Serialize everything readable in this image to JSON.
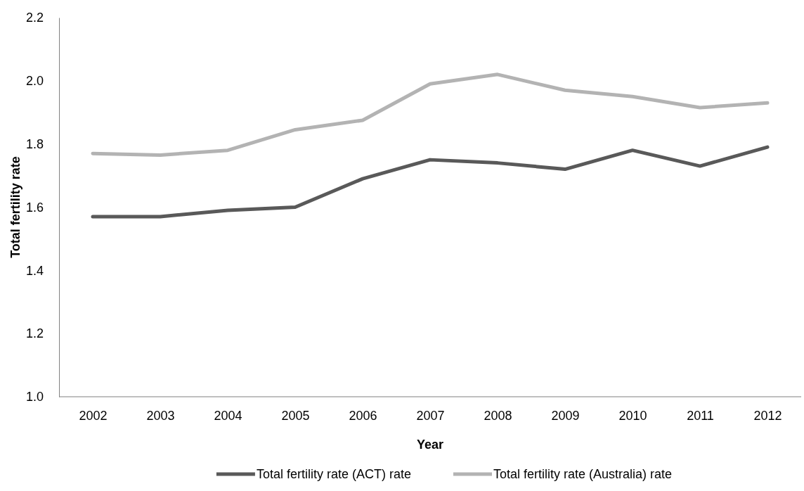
{
  "chart_data": {
    "type": "line",
    "xlabel": "Year",
    "ylabel": "Total fertility rate",
    "categories": [
      "2002",
      "2003",
      "2004",
      "2005",
      "2006",
      "2007",
      "2008",
      "2009",
      "2010",
      "2011",
      "2012"
    ],
    "series": [
      {
        "name": "Total fertility rate (ACT) rate",
        "color": "#595959",
        "values": [
          1.57,
          1.57,
          1.59,
          1.6,
          1.69,
          1.75,
          1.74,
          1.72,
          1.78,
          1.73,
          1.79
        ]
      },
      {
        "name": "Total fertility rate (Australia) rate",
        "color": "#b3b3b3",
        "values": [
          1.77,
          1.765,
          1.78,
          1.845,
          1.875,
          1.99,
          2.02,
          1.97,
          1.95,
          1.915,
          1.93
        ]
      }
    ],
    "ylim": [
      1.0,
      2.2
    ],
    "yticks": [
      {
        "value": 1.0,
        "label": "1.0"
      },
      {
        "value": 1.2,
        "label": "1.2"
      },
      {
        "value": 1.4,
        "label": "1.4"
      },
      {
        "value": 1.6,
        "label": "1.6"
      },
      {
        "value": 1.8,
        "label": "1.8"
      },
      {
        "value": 2.0,
        "label": "2.0"
      },
      {
        "value": 2.2,
        "label": "2.2"
      }
    ],
    "grid": false,
    "legend": "bottom",
    "marker": "none",
    "line_style": "solid"
  }
}
